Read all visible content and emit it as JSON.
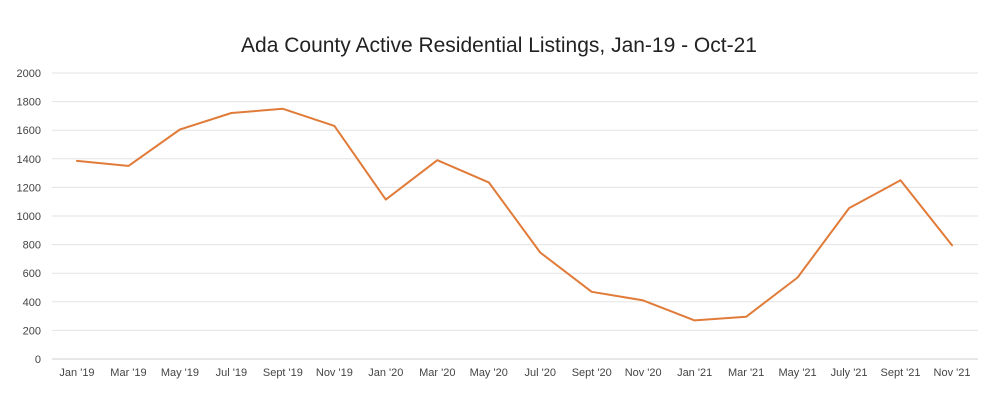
{
  "chart_data": {
    "type": "line",
    "title": "Ada County Active Residential Listings, Jan-19 - Oct-21",
    "xlabel": "",
    "ylabel": "",
    "categories": [
      "Jan '19",
      "Mar '19",
      "May '19",
      "Jul '19",
      "Sept '19",
      "Nov '19",
      "Jan '20",
      "Mar '20",
      "May '20",
      "Jul '20",
      "Sept '20",
      "Nov '20",
      "Jan '21",
      "Mar '21",
      "May '21",
      "July '21",
      "Sept '21",
      "Nov '21"
    ],
    "series": [
      {
        "name": "Active Residential Listings",
        "color": "#e07b39",
        "values": [
          1385,
          1350,
          1605,
          1720,
          1750,
          1630,
          1115,
          1390,
          1235,
          745,
          470,
          410,
          270,
          295,
          570,
          1055,
          1250,
          795
        ]
      }
    ],
    "ylim": [
      0,
      2000
    ],
    "yticks": [
      0,
      200,
      400,
      600,
      800,
      1000,
      1200,
      1400,
      1600,
      1800,
      2000
    ],
    "grid": true,
    "legend": "none"
  }
}
